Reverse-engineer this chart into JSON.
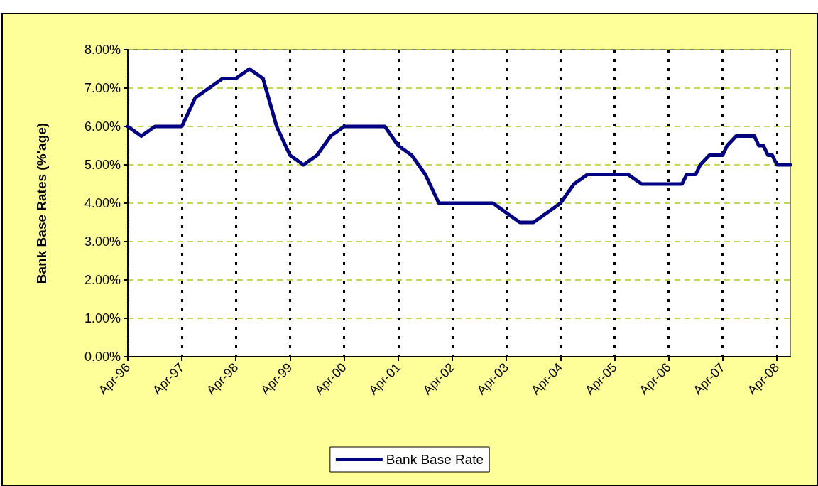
{
  "chart_data": {
    "type": "line",
    "ylabel": "Bank Base Rates (%'age)",
    "x": [
      "1996-04",
      "1996-07",
      "1996-10",
      "1997-01",
      "1997-04",
      "1997-07",
      "1997-10",
      "1998-01",
      "1998-04",
      "1998-07",
      "1998-10",
      "1999-01",
      "1999-04",
      "1999-07",
      "1999-10",
      "2000-01",
      "2000-04",
      "2000-07",
      "2000-10",
      "2001-01",
      "2001-04",
      "2001-07",
      "2001-10",
      "2002-01",
      "2002-04",
      "2002-07",
      "2002-10",
      "2003-01",
      "2003-04",
      "2003-07",
      "2003-10",
      "2004-01",
      "2004-04",
      "2004-07",
      "2004-10",
      "2005-01",
      "2005-04",
      "2005-07",
      "2005-10",
      "2006-01",
      "2006-04",
      "2006-07",
      "2006-08",
      "2006-10",
      "2006-11",
      "2007-01",
      "2007-04",
      "2007-05",
      "2007-07",
      "2007-11",
      "2007-12",
      "2008-01",
      "2008-02",
      "2008-03",
      "2008-04",
      "2008-07"
    ],
    "series": [
      {
        "name": "Bank Base Rate",
        "color": "#000080",
        "values": [
          6.0,
          5.75,
          6.0,
          6.0,
          6.0,
          6.75,
          7.0,
          7.25,
          7.25,
          7.5,
          7.25,
          6.0,
          5.25,
          5.0,
          5.25,
          5.75,
          6.0,
          6.0,
          6.0,
          6.0,
          5.5,
          5.25,
          4.75,
          4.0,
          4.0,
          4.0,
          4.0,
          4.0,
          3.75,
          3.5,
          3.5,
          3.75,
          4.0,
          4.5,
          4.75,
          4.75,
          4.75,
          4.75,
          4.5,
          4.5,
          4.5,
          4.5,
          4.75,
          4.75,
          5.0,
          5.25,
          5.25,
          5.5,
          5.75,
          5.75,
          5.5,
          5.5,
          5.25,
          5.25,
          5.0,
          5.0
        ]
      }
    ],
    "xlim": [
      "1996-04",
      "2008-07"
    ],
    "xticks": [
      {
        "value": "1996-04",
        "label": "Apr-96"
      },
      {
        "value": "1997-04",
        "label": "Apr-97"
      },
      {
        "value": "1998-04",
        "label": "Apr-98"
      },
      {
        "value": "1999-04",
        "label": "Apr-99"
      },
      {
        "value": "2000-04",
        "label": "Apr-00"
      },
      {
        "value": "2001-04",
        "label": "Apr-01"
      },
      {
        "value": "2002-04",
        "label": "Apr-02"
      },
      {
        "value": "2003-04",
        "label": "Apr-03"
      },
      {
        "value": "2004-04",
        "label": "Apr-04"
      },
      {
        "value": "2005-04",
        "label": "Apr-05"
      },
      {
        "value": "2006-04",
        "label": "Apr-06"
      },
      {
        "value": "2007-04",
        "label": "Apr-07"
      },
      {
        "value": "2008-04",
        "label": "Apr-08"
      }
    ],
    "ylim": [
      0,
      8
    ],
    "yticks": [
      {
        "value": 0,
        "label": "0.00%"
      },
      {
        "value": 1,
        "label": "1.00%"
      },
      {
        "value": 2,
        "label": "2.00%"
      },
      {
        "value": 3,
        "label": "3.00%"
      },
      {
        "value": 4,
        "label": "4.00%"
      },
      {
        "value": 5,
        "label": "5.00%"
      },
      {
        "value": 6,
        "label": "6.00%"
      },
      {
        "value": 7,
        "label": "7.00%"
      },
      {
        "value": 8,
        "label": "8.00%"
      }
    ],
    "grid": true,
    "legend": "bottom",
    "marker": "none",
    "line_style": "solid"
  }
}
